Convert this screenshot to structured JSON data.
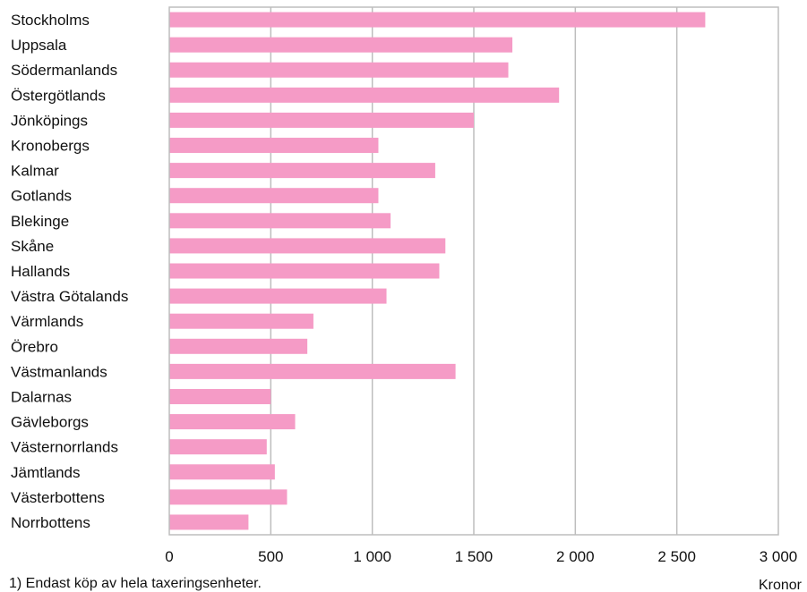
{
  "chart_data": {
    "type": "bar",
    "orientation": "horizontal",
    "categories": [
      "Stockholms",
      "Uppsala",
      "Södermanlands",
      "Östergötlands",
      "Jönköpings",
      "Kronobergs",
      "Kalmar",
      "Gotlands",
      "Blekinge",
      "Skåne",
      "Hallands",
      "Västra  Götalands",
      "Värmlands",
      "Örebro",
      "Västmanlands",
      "Dalarnas",
      "Gävleborgs",
      "Västernorrlands",
      "Jämtlands",
      "Västerbottens",
      "Norrbottens"
    ],
    "values": [
      2640,
      1690,
      1670,
      1920,
      1500,
      1030,
      1310,
      1030,
      1090,
      1360,
      1330,
      1070,
      710,
      680,
      1410,
      500,
      620,
      480,
      520,
      580,
      390
    ],
    "xlabel": "Kronor",
    "xlim": [
      0,
      3000
    ],
    "xticks": [
      "0",
      "500",
      "1 000",
      "1 500",
      "2 000",
      "2 500",
      "3 000"
    ],
    "grid": true,
    "color": "#f59bc6"
  },
  "footnote": "1) Endast köp av hela taxeringsenheter."
}
